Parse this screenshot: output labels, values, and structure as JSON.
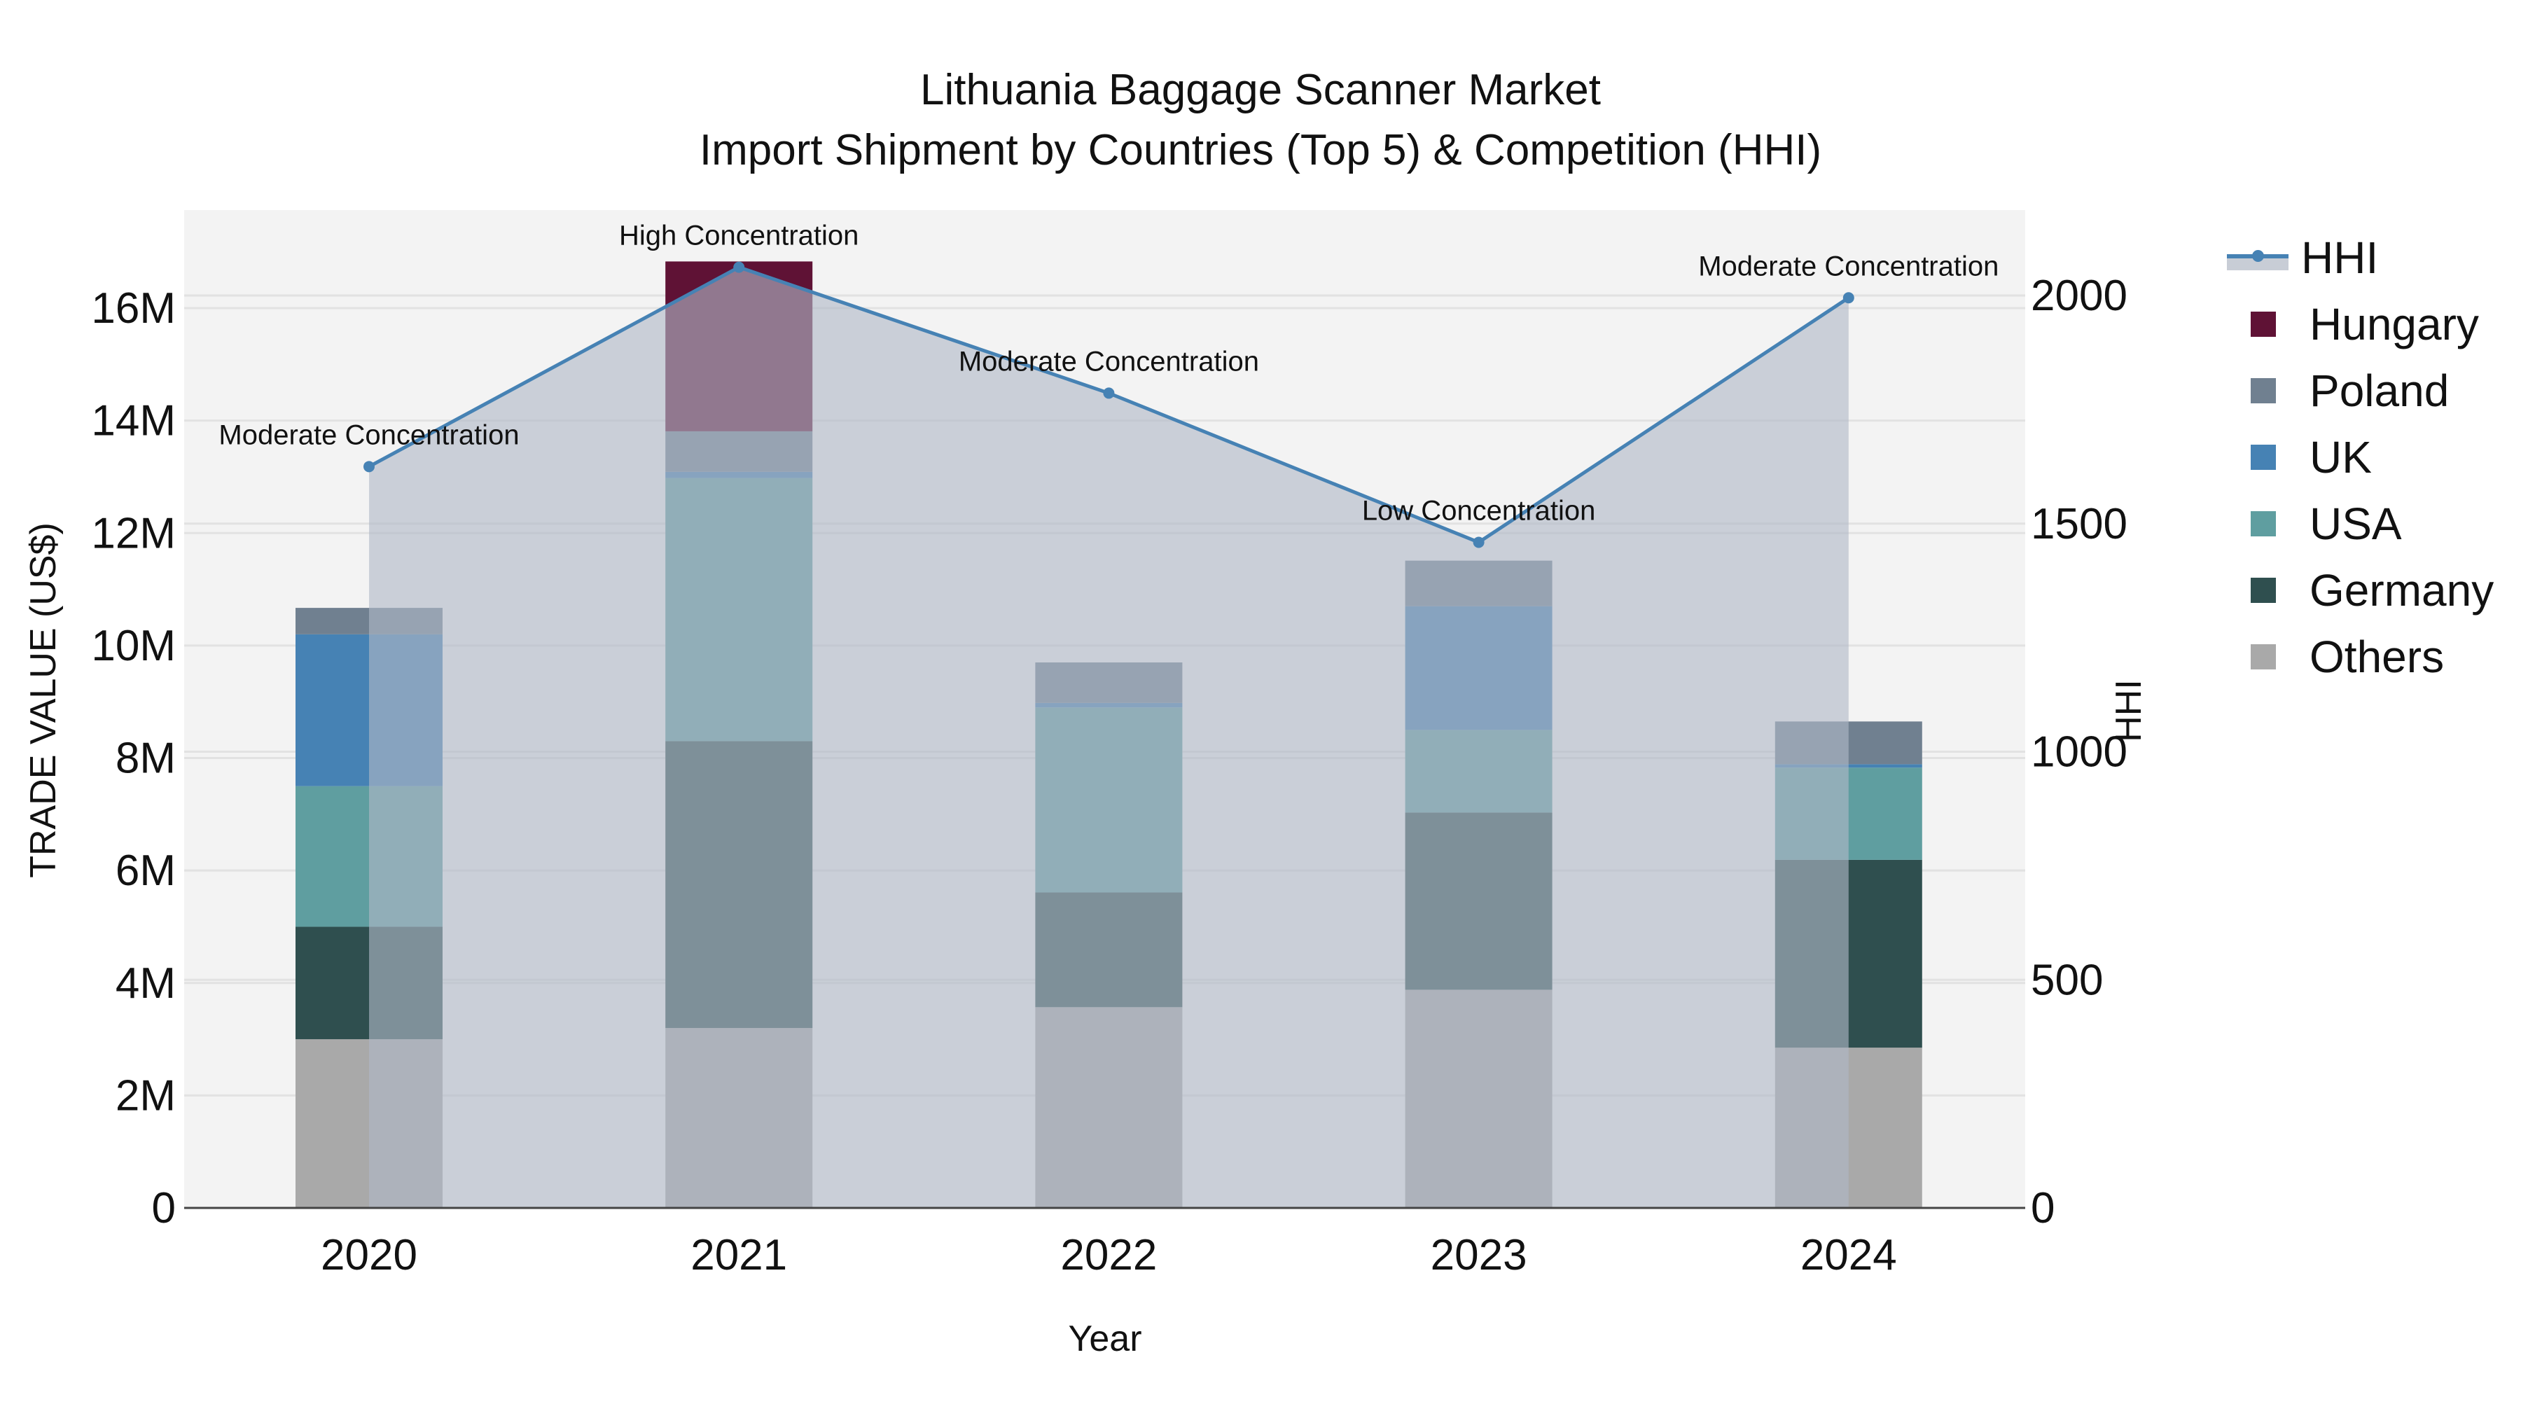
{
  "title": {
    "line1": "Lithuania Baggage Scanner Market",
    "line2": "Import Shipment by Countries (Top 5) & Competition (HHI)"
  },
  "axes": {
    "x_title": "Year",
    "y_left_title": "TRADE VALUE (US$)",
    "y_right_title": "HHI",
    "y_left_ticks": [
      "0",
      "2M",
      "4M",
      "6M",
      "8M",
      "10M",
      "12M",
      "14M",
      "16M"
    ],
    "y_right_ticks": [
      "0",
      "500",
      "1000",
      "1500",
      "2000"
    ]
  },
  "legend": {
    "items": [
      {
        "label": "HHI",
        "type": "line",
        "color": "#4682b4"
      },
      {
        "label": "Hungary",
        "type": "box",
        "color": "#5f1235"
      },
      {
        "label": "Poland",
        "type": "box",
        "color": "#708090"
      },
      {
        "label": "UK",
        "type": "box",
        "color": "#4682b4"
      },
      {
        "label": "USA",
        "type": "box",
        "color": "#5f9ea0"
      },
      {
        "label": "Germany",
        "type": "box",
        "color": "#2f4f4f"
      },
      {
        "label": "Others",
        "type": "box",
        "color": "#a9a9a9"
      }
    ]
  },
  "colors": {
    "plot_bg": "#f3f3f3",
    "grid": "#e2e2e2",
    "hhi_line": "#4682b4",
    "hhi_area": "rgba(176,184,198,0.62)"
  },
  "chart_data": {
    "type": "bar",
    "title": "Lithuania Baggage Scanner Market — Import Shipment by Countries (Top 5) & Competition (HHI)",
    "xlabel": "Year",
    "ylabel": "TRADE VALUE (US$)",
    "y2label": "HHI",
    "ylim": [
      0,
      17400000
    ],
    "y2lim": [
      0,
      2185
    ],
    "grid": true,
    "legend_position": "right",
    "barmode": "stack",
    "categories": [
      "2020",
      "2021",
      "2022",
      "2023",
      "2024"
    ],
    "series": [
      {
        "name": "Others",
        "type": "bar",
        "color": "#a9a9a9",
        "values": [
          3000000,
          3200000,
          3570000,
          3880000,
          2850000
        ]
      },
      {
        "name": "Germany",
        "type": "bar",
        "color": "#2f4f4f",
        "values": [
          2000000,
          5100000,
          2040000,
          3150000,
          3340000
        ]
      },
      {
        "name": "USA",
        "type": "bar",
        "color": "#5f9ea0",
        "values": [
          2500000,
          4680000,
          3290000,
          1470000,
          1640000
        ]
      },
      {
        "name": "UK",
        "type": "bar",
        "color": "#4682b4",
        "values": [
          2700000,
          110000,
          80000,
          2200000,
          60000
        ]
      },
      {
        "name": "Poland",
        "type": "bar",
        "color": "#708090",
        "values": [
          470000,
          720000,
          720000,
          810000,
          760000
        ]
      },
      {
        "name": "Hungary",
        "type": "bar",
        "color": "#5f1235",
        "values": [
          0,
          3020000,
          0,
          0,
          0
        ]
      },
      {
        "name": "HHI",
        "type": "line+area",
        "axis": "y2",
        "color": "#4682b4",
        "values": [
          1625,
          2062,
          1786,
          1459,
          1995
        ]
      }
    ],
    "annotations": [
      {
        "x": "2020",
        "text": "Moderate Concentration"
      },
      {
        "x": "2021",
        "text": "High Concentration"
      },
      {
        "x": "2022",
        "text": "Moderate Concentration"
      },
      {
        "x": "2023",
        "text": "Low Concentration"
      },
      {
        "x": "2024",
        "text": "Moderate Concentration"
      }
    ]
  }
}
